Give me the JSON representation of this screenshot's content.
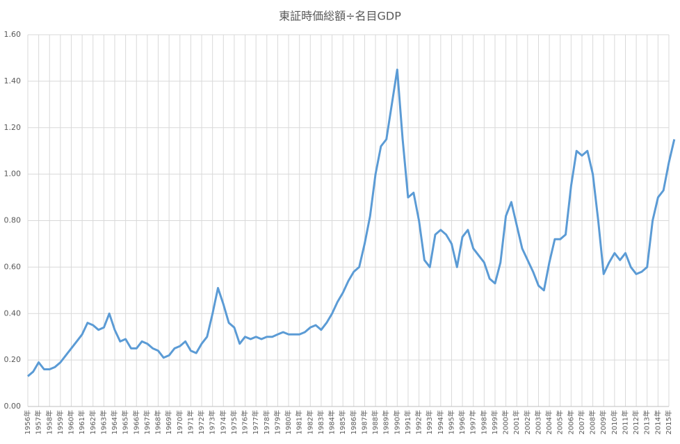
{
  "chart_data": {
    "type": "line",
    "title": "東証時価総額÷名目GDP",
    "categories": [
      "1956年",
      null,
      "1957年",
      null,
      "1958年",
      null,
      "1959年",
      null,
      "1960年",
      null,
      "1961年",
      null,
      "1962年",
      null,
      "1963年",
      null,
      "1964年",
      null,
      "1965年",
      null,
      "1966年",
      null,
      "1967年",
      null,
      "1968年",
      null,
      "1969年",
      null,
      "1970年",
      null,
      "1971年",
      null,
      "1972年",
      null,
      "1973年",
      null,
      "1974年",
      null,
      "1975年",
      null,
      "1976年",
      null,
      "1977年",
      null,
      "1978年",
      null,
      "1979年",
      null,
      "1980年",
      null,
      "1981年",
      null,
      "1982年",
      null,
      "1983年",
      null,
      "1984年",
      null,
      "1985年",
      null,
      "1986年",
      null,
      "1987年",
      null,
      "1988年",
      null,
      "1989年",
      null,
      "1990年",
      null,
      "1991年",
      null,
      "1992年",
      null,
      "1993年",
      null,
      "1994年",
      null,
      "1995年",
      null,
      "1996年",
      null,
      "1997年",
      null,
      "1998年",
      null,
      "1999年",
      null,
      "2000年",
      null,
      "2001年",
      null,
      "2002年",
      null,
      "2003年",
      null,
      "2004年",
      null,
      "2005年",
      null,
      "2006年",
      null,
      "2007年",
      null,
      "2008年",
      null,
      "2009年",
      null,
      "2010年",
      null,
      "2011年",
      null,
      "2012年",
      null,
      "2013年",
      null,
      "2014年",
      null,
      "2015年",
      null
    ],
    "series": [
      {
        "color": "#5b9bd5",
        "values": [
          0.13,
          0.15,
          0.19,
          0.16,
          0.16,
          0.17,
          0.19,
          0.22,
          0.25,
          0.28,
          0.31,
          0.36,
          0.35,
          0.33,
          0.34,
          0.4,
          0.33,
          0.28,
          0.29,
          0.25,
          0.25,
          0.28,
          0.27,
          0.25,
          0.24,
          0.21,
          0.22,
          0.25,
          0.26,
          0.28,
          0.24,
          0.23,
          0.27,
          0.3,
          0.4,
          0.51,
          0.44,
          0.36,
          0.34,
          0.27,
          0.3,
          0.29,
          0.3,
          0.29,
          0.3,
          0.3,
          0.31,
          0.32,
          0.31,
          0.31,
          0.31,
          0.32,
          0.34,
          0.35,
          0.33,
          0.36,
          0.4,
          0.45,
          0.49,
          0.54,
          0.58,
          0.6,
          0.7,
          0.82,
          1.0,
          1.12,
          1.15,
          1.3,
          1.45,
          1.15,
          0.9,
          0.92,
          0.8,
          0.63,
          0.6,
          0.74,
          0.76,
          0.74,
          0.7,
          0.6,
          0.73,
          0.76,
          0.68,
          0.65,
          0.62,
          0.55,
          0.53,
          0.62,
          0.82,
          0.88,
          0.78,
          0.68,
          0.63,
          0.58,
          0.52,
          0.5,
          0.62,
          0.72,
          0.72,
          0.74,
          0.95,
          1.1,
          1.08,
          1.1,
          1.0,
          0.8,
          0.57,
          0.62,
          0.66,
          0.63,
          0.66,
          0.6,
          0.57,
          0.58,
          0.6,
          0.8,
          0.9,
          0.93,
          1.05,
          1.15
        ]
      }
    ],
    "ylim": [
      0,
      1.6
    ],
    "yticks": [
      {
        "value": 0,
        "label": "0.00"
      },
      {
        "value": 0.2,
        "label": "0.20"
      },
      {
        "value": 0.4,
        "label": "0.40"
      },
      {
        "value": 0.6,
        "label": "0.60"
      },
      {
        "value": 0.8,
        "label": "0.80"
      },
      {
        "value": 1.0,
        "label": "1.00"
      },
      {
        "value": 1.2,
        "label": "1.20"
      },
      {
        "value": 1.4,
        "label": "1.40"
      },
      {
        "value": 1.6,
        "label": "1.60"
      }
    ],
    "grid": true
  }
}
